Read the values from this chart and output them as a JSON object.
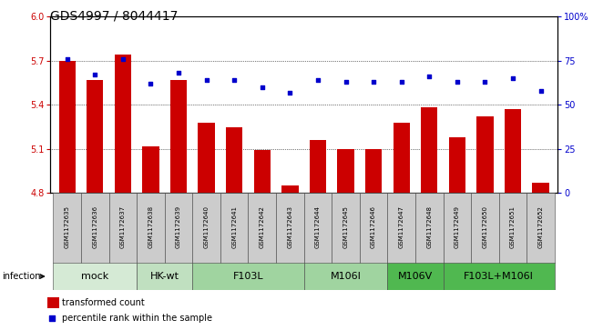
{
  "title": "GDS4997 / 8044417",
  "samples": [
    "GSM1172635",
    "GSM1172636",
    "GSM1172637",
    "GSM1172638",
    "GSM1172639",
    "GSM1172640",
    "GSM1172641",
    "GSM1172642",
    "GSM1172643",
    "GSM1172644",
    "GSM1172645",
    "GSM1172646",
    "GSM1172647",
    "GSM1172648",
    "GSM1172649",
    "GSM1172650",
    "GSM1172651",
    "GSM1172652"
  ],
  "bar_values": [
    5.7,
    5.57,
    5.74,
    5.12,
    5.57,
    5.28,
    5.25,
    5.09,
    4.85,
    5.16,
    5.1,
    5.1,
    5.28,
    5.38,
    5.18,
    5.32,
    5.37,
    4.87
  ],
  "blue_values": [
    76,
    67,
    76,
    62,
    68,
    64,
    64,
    60,
    57,
    64,
    63,
    63,
    63,
    66,
    63,
    63,
    65,
    58
  ],
  "ylim_left": [
    4.8,
    6.0
  ],
  "ylim_right": [
    0,
    100
  ],
  "yticks_left": [
    4.8,
    5.1,
    5.4,
    5.7,
    6.0
  ],
  "yticks_right": [
    0,
    25,
    50,
    75,
    100
  ],
  "ytick_labels_right": [
    "0",
    "25",
    "50",
    "75",
    "100%"
  ],
  "groups": [
    {
      "label": "mock",
      "start": 0,
      "end": 3,
      "color": "#d5ead5"
    },
    {
      "label": "HK-wt",
      "start": 3,
      "end": 5,
      "color": "#c0e0c0"
    },
    {
      "label": "F103L",
      "start": 5,
      "end": 9,
      "color": "#a0d4a0"
    },
    {
      "label": "M106I",
      "start": 9,
      "end": 12,
      "color": "#a0d4a0"
    },
    {
      "label": "M106V",
      "start": 12,
      "end": 14,
      "color": "#50b850"
    },
    {
      "label": "F103L+M106I",
      "start": 14,
      "end": 18,
      "color": "#50b850"
    }
  ],
  "bar_color": "#cc0000",
  "blue_color": "#0000cc",
  "infection_label": "infection",
  "legend_bar": "transformed count",
  "legend_dot": "percentile rank within the sample",
  "background_color": "#ffffff",
  "title_fontsize": 10,
  "tick_fontsize": 7,
  "group_label_fontsize": 8,
  "sample_fontsize": 5,
  "xlabel_color_left": "#cc0000",
  "xlabel_color_right": "#0000cc"
}
